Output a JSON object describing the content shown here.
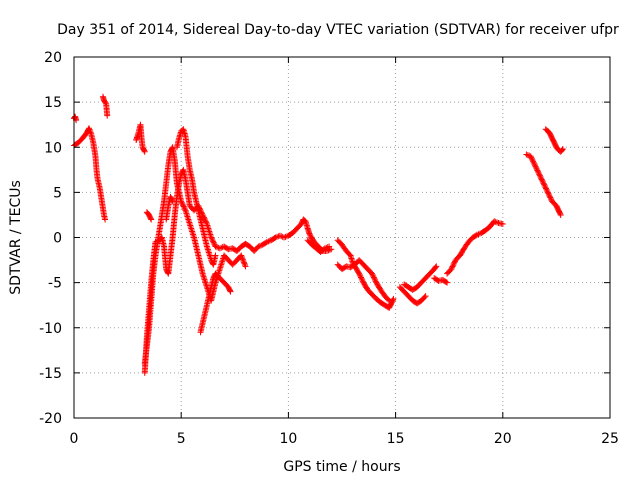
{
  "chart_data": {
    "type": "scatter",
    "title": "Day 351 of 2014, Sidereal Day-to-day VTEC variation (SDTVAR) for receiver ufpr",
    "xlabel": "GPS time / hours",
    "ylabel": "SDTVAR / TECUs",
    "xlim": [
      0,
      25
    ],
    "ylim": [
      -20,
      20
    ],
    "x_ticks": [
      0,
      5,
      10,
      15,
      20,
      25
    ],
    "y_ticks": [
      -20,
      -15,
      -10,
      -5,
      0,
      5,
      10,
      15,
      20
    ],
    "x_tick_labels": [
      "0",
      "5",
      "10",
      "15",
      "20",
      "25"
    ],
    "y_tick_labels": [
      "-20",
      "-15",
      "-10",
      "-5",
      "0",
      "5",
      "10",
      "15",
      "20"
    ],
    "grid": true,
    "marker": "plus",
    "series": [
      {
        "name": "SDTVAR",
        "color": "#ff0000",
        "segments": [
          [
            [
              0.0,
              13.2
            ],
            [
              0.05,
              13.4
            ],
            [
              0.1,
              13.0
            ]
          ],
          [
            [
              0.0,
              10.2
            ],
            [
              0.2,
              10.5
            ],
            [
              0.4,
              11.0
            ],
            [
              0.6,
              11.6
            ],
            [
              0.7,
              12.1
            ],
            [
              0.8,
              11.5
            ],
            [
              0.9,
              10.5
            ],
            [
              1.0,
              9.0
            ],
            [
              1.05,
              7.5
            ],
            [
              1.1,
              6.5
            ],
            [
              1.2,
              5.5
            ],
            [
              1.3,
              4.0
            ],
            [
              1.4,
              2.5
            ],
            [
              1.45,
              2.0
            ]
          ],
          [
            [
              1.35,
              15.6
            ],
            [
              1.4,
              15.2
            ],
            [
              1.5,
              14.8
            ],
            [
              1.55,
              13.5
            ]
          ],
          [
            [
              2.9,
              10.8
            ],
            [
              3.0,
              11.5
            ],
            [
              3.1,
              12.5
            ],
            [
              3.15,
              11.0
            ],
            [
              3.2,
              10.0
            ],
            [
              3.3,
              9.5
            ]
          ],
          [
            [
              3.3,
              -15.0
            ],
            [
              3.35,
              -13.0
            ],
            [
              3.4,
              -11.0
            ],
            [
              3.5,
              -8.0
            ],
            [
              3.6,
              -5.0
            ],
            [
              3.7,
              -2.5
            ],
            [
              3.8,
              -0.5
            ],
            [
              4.0,
              -0.3
            ],
            [
              4.1,
              0.0
            ],
            [
              4.2,
              -1.0
            ],
            [
              4.3,
              -3.5
            ],
            [
              4.4,
              -4.0
            ],
            [
              4.5,
              -2.0
            ],
            [
              4.6,
              0.0
            ],
            [
              4.7,
              2.5
            ],
            [
              4.8,
              4.5
            ],
            [
              4.9,
              6.0
            ],
            [
              5.0,
              7.0
            ],
            [
              5.1,
              7.5
            ],
            [
              5.2,
              6.5
            ],
            [
              5.3,
              5.0
            ],
            [
              5.4,
              3.5
            ],
            [
              5.6,
              3.0
            ],
            [
              5.8,
              3.5
            ],
            [
              6.0,
              2.5
            ],
            [
              6.2,
              1.5
            ],
            [
              6.4,
              0.0
            ],
            [
              6.6,
              -1.0
            ],
            [
              6.8,
              -1.2
            ],
            [
              7.0,
              -1.0
            ],
            [
              7.2,
              -1.3
            ],
            [
              7.4,
              -1.2
            ],
            [
              7.6,
              -1.5
            ],
            [
              7.8,
              -1.0
            ],
            [
              8.0,
              -0.7
            ],
            [
              8.2,
              -1.0
            ],
            [
              8.4,
              -1.5
            ],
            [
              8.6,
              -1.0
            ],
            [
              8.8,
              -0.8
            ],
            [
              9.0,
              -0.5
            ],
            [
              9.2,
              -0.3
            ],
            [
              9.4,
              0.0
            ],
            [
              9.6,
              0.2
            ],
            [
              9.8,
              0.0
            ],
            [
              10.0,
              0.2
            ],
            [
              10.2,
              0.5
            ],
            [
              10.4,
              1.0
            ],
            [
              10.6,
              1.5
            ],
            [
              10.7,
              2.0
            ],
            [
              10.8,
              1.8
            ],
            [
              10.9,
              1.0
            ],
            [
              11.0,
              0.3
            ],
            [
              11.2,
              -0.5
            ],
            [
              11.4,
              -1.0
            ],
            [
              11.6,
              -1.5
            ],
            [
              11.8,
              -1.5
            ],
            [
              12.0,
              -1.3
            ]
          ],
          [
            [
              3.3,
              -14.0
            ],
            [
              3.4,
              -12.0
            ],
            [
              3.5,
              -10.0
            ],
            [
              3.6,
              -7.0
            ],
            [
              3.7,
              -4.0
            ],
            [
              3.8,
              -2.0
            ],
            [
              4.0,
              1.0
            ],
            [
              4.2,
              4.0
            ],
            [
              4.4,
              8.0
            ],
            [
              4.5,
              9.5
            ],
            [
              4.6,
              10.0
            ],
            [
              4.7,
              8.5
            ],
            [
              4.8,
              6.0
            ],
            [
              5.0,
              4.0
            ],
            [
              5.2,
              3.0
            ],
            [
              5.4,
              1.5
            ],
            [
              5.6,
              0.0
            ],
            [
              5.8,
              -2.0
            ],
            [
              6.0,
              -4.0
            ],
            [
              6.2,
              -5.5
            ],
            [
              6.4,
              -7.0
            ],
            [
              6.6,
              -5.0
            ],
            [
              6.8,
              -3.5
            ],
            [
              7.0,
              -2.0
            ],
            [
              7.2,
              -2.5
            ],
            [
              7.4,
              -3.0
            ],
            [
              7.6,
              -2.5
            ],
            [
              7.8,
              -2.0
            ],
            [
              8.0,
              -3.2
            ]
          ],
          [
            [
              5.9,
              -10.5
            ],
            [
              6.0,
              -9.5
            ],
            [
              6.1,
              -8.5
            ],
            [
              6.2,
              -7.5
            ],
            [
              6.3,
              -6.5
            ],
            [
              6.4,
              -5.5
            ],
            [
              6.5,
              -4.5
            ],
            [
              6.6,
              -4.0
            ],
            [
              6.8,
              -4.5
            ],
            [
              7.0,
              -5.0
            ],
            [
              7.2,
              -5.5
            ],
            [
              7.3,
              -6.0
            ]
          ],
          [
            [
              4.8,
              10.0
            ],
            [
              4.9,
              11.0
            ],
            [
              5.0,
              11.8
            ],
            [
              5.1,
              12.0
            ],
            [
              5.2,
              11.2
            ],
            [
              5.3,
              9.0
            ],
            [
              5.4,
              7.5
            ],
            [
              5.5,
              6.5
            ],
            [
              5.6,
              5.0
            ],
            [
              5.8,
              3.0
            ],
            [
              6.0,
              1.0
            ],
            [
              6.2,
              -1.0
            ],
            [
              6.4,
              -2.5
            ],
            [
              6.5,
              -3.0
            ],
            [
              6.6,
              -2.0
            ]
          ],
          [
            [
              3.4,
              2.8
            ],
            [
              3.5,
              2.5
            ],
            [
              3.6,
              2.0
            ]
          ],
          [
            [
              4.3,
              2.0
            ],
            [
              4.4,
              3.5
            ],
            [
              4.5,
              4.5
            ],
            [
              4.6,
              4.0
            ]
          ],
          [
            [
              10.9,
              -0.3
            ],
            [
              11.1,
              -0.8
            ],
            [
              11.3,
              -1.2
            ],
            [
              11.5,
              -1.6
            ],
            [
              11.7,
              -1.2
            ],
            [
              11.9,
              -1.0
            ]
          ],
          [
            [
              12.3,
              -0.3
            ],
            [
              12.5,
              -0.8
            ],
            [
              12.7,
              -1.5
            ],
            [
              12.9,
              -2.0
            ],
            [
              13.0,
              -2.8
            ],
            [
              13.1,
              -3.2
            ],
            [
              13.3,
              -4.0
            ],
            [
              13.5,
              -5.0
            ],
            [
              13.7,
              -5.8
            ],
            [
              13.9,
              -6.3
            ],
            [
              14.1,
              -6.8
            ],
            [
              14.3,
              -7.2
            ],
            [
              14.5,
              -7.5
            ],
            [
              14.7,
              -7.8
            ],
            [
              14.8,
              -7.3
            ],
            [
              14.9,
              -6.8
            ]
          ],
          [
            [
              12.3,
              -3.0
            ],
            [
              12.5,
              -3.5
            ],
            [
              12.7,
              -3.2
            ],
            [
              12.9,
              -3.3
            ],
            [
              13.1,
              -3.0
            ],
            [
              13.3,
              -2.5
            ],
            [
              13.5,
              -3.0
            ],
            [
              13.7,
              -3.5
            ],
            [
              13.9,
              -4.0
            ],
            [
              14.1,
              -5.0
            ],
            [
              14.3,
              -5.8
            ],
            [
              14.5,
              -6.5
            ],
            [
              14.7,
              -7.0
            ]
          ],
          [
            [
              15.2,
              -5.5
            ],
            [
              15.4,
              -6.0
            ],
            [
              15.6,
              -6.5
            ],
            [
              15.8,
              -7.0
            ],
            [
              16.0,
              -7.3
            ],
            [
              16.2,
              -7.0
            ],
            [
              16.4,
              -6.5
            ]
          ],
          [
            [
              15.4,
              -5.2
            ],
            [
              15.6,
              -5.5
            ],
            [
              15.8,
              -5.8
            ],
            [
              16.0,
              -5.5
            ],
            [
              16.2,
              -5.0
            ],
            [
              16.4,
              -4.5
            ],
            [
              16.6,
              -4.0
            ],
            [
              16.8,
              -3.5
            ],
            [
              16.9,
              -3.2
            ]
          ],
          [
            [
              16.8,
              -4.5
            ],
            [
              17.0,
              -4.8
            ],
            [
              17.2,
              -4.7
            ],
            [
              17.4,
              -5.0
            ]
          ],
          [
            [
              17.4,
              -4.0
            ],
            [
              17.6,
              -3.5
            ],
            [
              17.8,
              -2.5
            ],
            [
              18.0,
              -2.0
            ],
            [
              18.2,
              -1.2
            ],
            [
              18.4,
              -0.5
            ],
            [
              18.6,
              0.0
            ],
            [
              18.8,
              0.3
            ],
            [
              19.0,
              0.5
            ],
            [
              19.2,
              0.8
            ],
            [
              19.4,
              1.2
            ],
            [
              19.6,
              1.8
            ],
            [
              19.8,
              1.6
            ],
            [
              20.0,
              1.5
            ]
          ],
          [
            [
              21.1,
              9.2
            ],
            [
              21.3,
              9.0
            ],
            [
              21.5,
              8.0
            ],
            [
              21.7,
              7.0
            ],
            [
              21.9,
              6.0
            ],
            [
              22.1,
              5.0
            ],
            [
              22.3,
              4.0
            ],
            [
              22.5,
              3.5
            ],
            [
              22.6,
              3.0
            ],
            [
              22.7,
              2.5
            ]
          ],
          [
            [
              22.0,
              12.0
            ],
            [
              22.1,
              11.8
            ],
            [
              22.2,
              11.5
            ],
            [
              22.3,
              11.0
            ],
            [
              22.4,
              10.5
            ],
            [
              22.5,
              10.0
            ],
            [
              22.6,
              9.7
            ],
            [
              22.7,
              9.5
            ],
            [
              22.8,
              9.8
            ]
          ]
        ]
      }
    ]
  }
}
